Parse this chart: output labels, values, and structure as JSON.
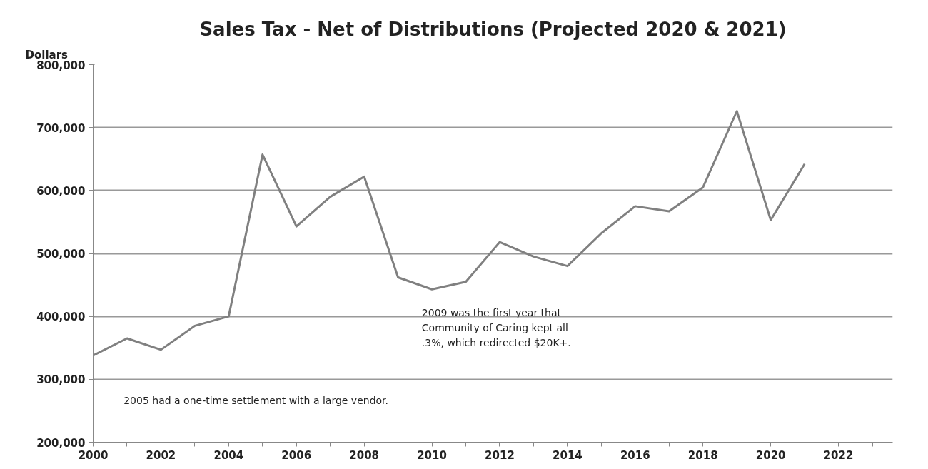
{
  "chart_data": {
    "type": "line",
    "title": "Sales Tax - Net of Distributions (Projected 2020 & 2021)",
    "ylabel": "Dollars",
    "x": [
      2000,
      2001,
      2002,
      2003,
      2004,
      2005,
      2006,
      2007,
      2008,
      2009,
      2010,
      2011,
      2012,
      2013,
      2014,
      2015,
      2016,
      2017,
      2018,
      2019,
      2020,
      2021
    ],
    "series": [
      {
        "color": "#808080",
        "values": [
          338000,
          365000,
          347000,
          385000,
          400000,
          657000,
          543000,
          590000,
          622000,
          462000,
          443000,
          455000,
          518000,
          495000,
          480000,
          532000,
          575000,
          567000,
          605000,
          726000,
          553000,
          642000
        ]
      }
    ],
    "xlim": [
      2000,
      2023.6
    ],
    "xticks": [
      2000,
      {
        "value": 2001,
        "label": null
      },
      2002,
      {
        "value": 2003,
        "label": null
      },
      2004,
      {
        "value": 2005,
        "label": null
      },
      2006,
      {
        "value": 2007,
        "label": null
      },
      2008,
      {
        "value": 2009,
        "label": null
      },
      2010,
      {
        "value": 2011,
        "label": null
      },
      2012,
      {
        "value": 2013,
        "label": null
      },
      2014,
      {
        "value": 2015,
        "label": null
      },
      2016,
      {
        "value": 2017,
        "label": null
      },
      2018,
      {
        "value": 2019,
        "label": null
      },
      2020,
      {
        "value": 2021,
        "label": null
      },
      2022,
      {
        "value": 2023,
        "label": null
      }
    ],
    "ylim": [
      200000,
      800000
    ],
    "yticks": [
      {
        "value": 200000,
        "label": "200,000"
      },
      {
        "value": 300000,
        "label": "300,000"
      },
      {
        "value": 400000,
        "label": "400,000"
      },
      {
        "value": 500000,
        "label": "500,000"
      },
      {
        "value": 600000,
        "label": "600,000"
      },
      {
        "value": 700000,
        "label": "700,000"
      },
      {
        "value": 800000,
        "label": "800,000"
      }
    ],
    "grid": "y",
    "marker": "none",
    "line_style": "solid",
    "annotations": [
      "2009 was the first year that\nCommunity of Caring kept all\n.3%, which redirected $20K+.",
      "2005 had a one-time settlement with a large vendor."
    ]
  }
}
